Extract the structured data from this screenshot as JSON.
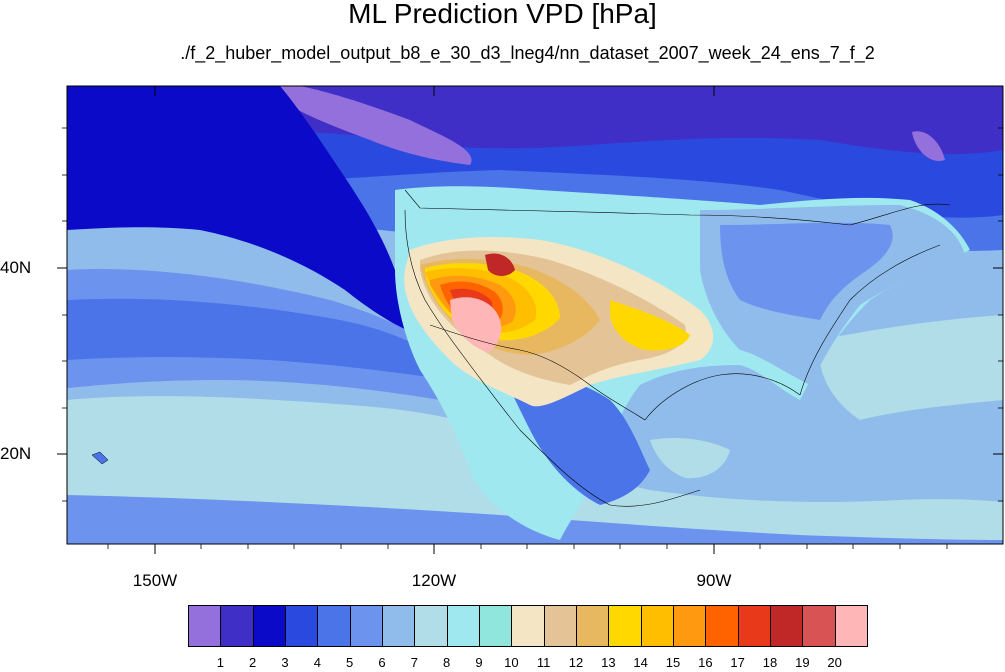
{
  "title": "ML Prediction VPD [hPa]",
  "subtitle": "./f_2_huber_model_output_b8_e_30_d3_lneg4/nn_dataset_2007_week_24_ens_7_f_2",
  "lat_labels": [
    "40N",
    "20N"
  ],
  "lon_labels": [
    "150W",
    "120W",
    "90W"
  ],
  "colorbar": {
    "labels": [
      "1",
      "2",
      "3",
      "4",
      "5",
      "6",
      "7",
      "8",
      "9",
      "10",
      "11",
      "12",
      "13",
      "14",
      "15",
      "16",
      "17",
      "18",
      "19",
      "20"
    ],
    "colors": [
      "#9370DB",
      "#3F2FC6",
      "#0A0AC8",
      "#2A4ADF",
      "#4A74E8",
      "#6C94EE",
      "#8FBCEB",
      "#B0DDE8",
      "#A0E8F0",
      "#90E6DC",
      "#F4E6C4",
      "#E4C497",
      "#E8B860",
      "#FFD800",
      "#FFBF00",
      "#FF9A10",
      "#FF6300",
      "#E83A1A",
      "#C02828",
      "#D85454",
      "#FFB6B6"
    ]
  },
  "chart_data": {
    "type": "heatmap",
    "title": "ML Prediction VPD [hPa]",
    "subtitle": "./f_2_huber_model_output_b8_e_30_d3_lneg4/nn_dataset_2007_week_24_ens_7_f_2",
    "variable": "VPD [hPa]",
    "lon_range": [
      -160,
      -57
    ],
    "lat_range": [
      11,
      60
    ],
    "lon_ticks": [
      "150W",
      "120W",
      "90W"
    ],
    "lat_ticks": [
      "40N",
      "20N"
    ],
    "colorbar_levels": [
      1,
      2,
      3,
      4,
      5,
      6,
      7,
      8,
      9,
      10,
      11,
      12,
      13,
      14,
      15,
      16,
      17,
      18,
      19,
      20
    ]
  }
}
